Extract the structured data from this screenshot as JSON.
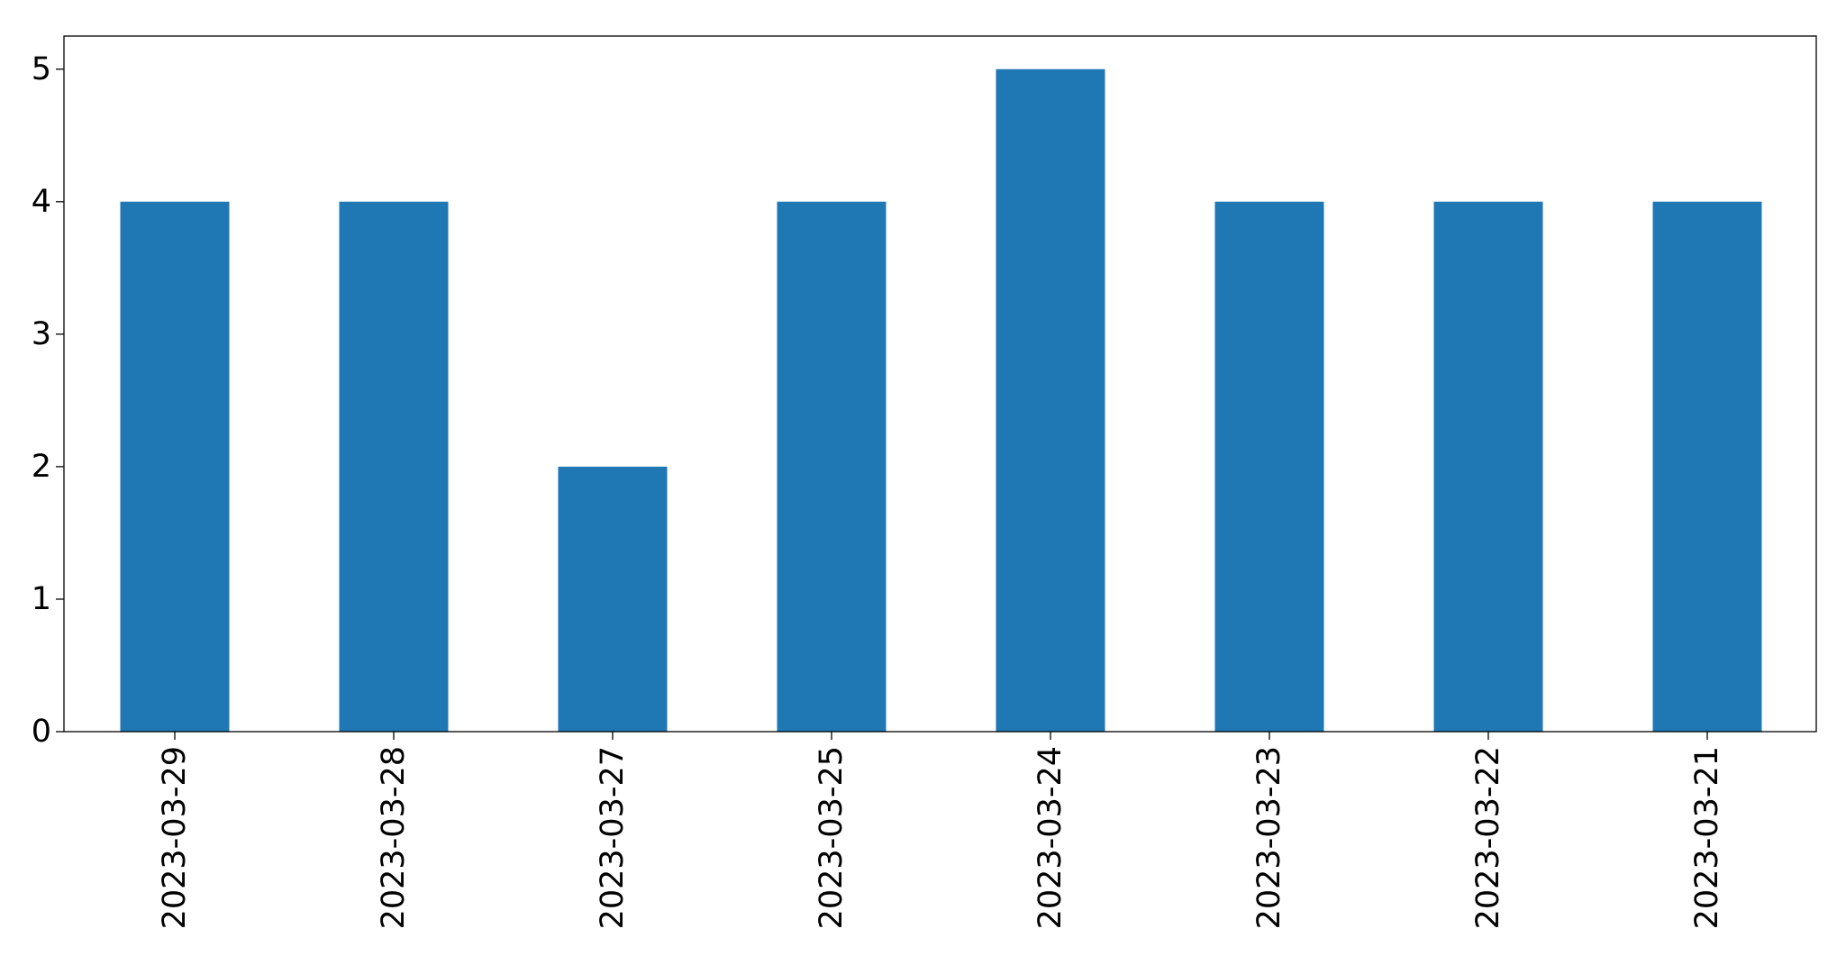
{
  "chart_data": {
    "type": "bar",
    "categories": [
      "2023-03-29",
      "2023-03-28",
      "2023-03-27",
      "2023-03-25",
      "2023-03-24",
      "2023-03-23",
      "2023-03-22",
      "2023-03-21"
    ],
    "values": [
      4,
      4,
      2,
      4,
      5,
      4,
      4,
      4
    ],
    "title": "",
    "xlabel": "",
    "ylabel": "",
    "ylim": [
      0,
      5.25
    ],
    "yticks": [
      0,
      1,
      2,
      3,
      4,
      5
    ],
    "grid": false,
    "legend": "none",
    "bar_color": "#1f77b4"
  }
}
